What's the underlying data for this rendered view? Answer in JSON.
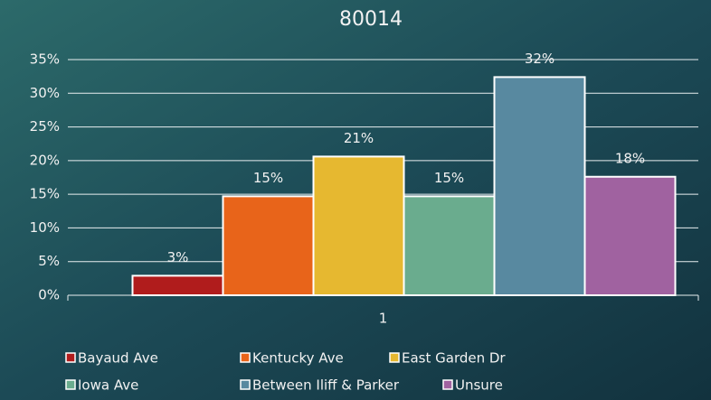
{
  "chart_data": {
    "type": "bar",
    "title": "80014",
    "categories": [
      "1"
    ],
    "series": [
      {
        "name": "Bayaud Ave",
        "color": "#b01c1c",
        "values": [
          2.9
        ],
        "value_labels": [
          "3%"
        ]
      },
      {
        "name": "Kentucky Ave",
        "color": "#e8641a",
        "values": [
          14.7
        ],
        "value_labels": [
          "15%"
        ]
      },
      {
        "name": "East Garden Dr",
        "color": "#e6b830",
        "values": [
          20.6
        ],
        "value_labels": [
          "21%"
        ]
      },
      {
        "name": "Iowa Ave",
        "color": "#6aac8e",
        "values": [
          14.7
        ],
        "value_labels": [
          "15%"
        ]
      },
      {
        "name": "Between Iliff & Parker",
        "color": "#5889a0",
        "values": [
          32.4
        ],
        "value_labels": [
          "32%"
        ]
      },
      {
        "name": "Unsure",
        "color": "#a062a0",
        "values": [
          17.6
        ],
        "value_labels": [
          "18%"
        ]
      }
    ],
    "ylim": [
      0,
      35
    ],
    "yticks": [
      {
        "value": 0,
        "label": "0%"
      },
      {
        "value": 5,
        "label": "5%"
      },
      {
        "value": 10,
        "label": "10%"
      },
      {
        "value": 15,
        "label": "15%"
      },
      {
        "value": 20,
        "label": "20%"
      },
      {
        "value": 25,
        "label": "25%"
      },
      {
        "value": 30,
        "label": "30%"
      },
      {
        "value": 35,
        "label": "35%"
      }
    ],
    "grid": true,
    "legend": "bottom"
  }
}
